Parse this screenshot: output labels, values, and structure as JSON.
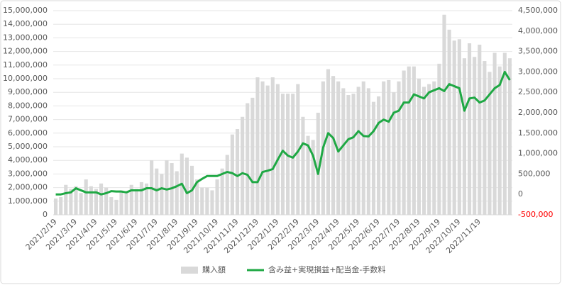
{
  "chart_data": {
    "type": "bar_line",
    "categories": [
      "2021/2/19",
      null,
      null,
      null,
      "2021/3/19",
      null,
      null,
      null,
      "2021/4/19",
      null,
      null,
      null,
      "2021/5/19",
      null,
      null,
      null,
      "2021/6/19",
      null,
      null,
      null,
      "2021/7/19",
      null,
      null,
      null,
      "2021/8/19",
      null,
      null,
      null,
      "2021/9/19",
      null,
      null,
      null,
      "2021/10/19",
      null,
      null,
      null,
      "2021/11/19",
      null,
      null,
      null,
      "2021/12/19",
      null,
      null,
      null,
      "2022/1/19",
      null,
      null,
      null,
      "2022/2/19",
      null,
      null,
      null,
      "2022/3/19",
      null,
      null,
      null,
      "2022/4/19",
      null,
      null,
      null,
      "2022/5/19",
      null,
      null,
      null,
      "2022/6/19",
      null,
      null,
      null,
      "2022/7/19",
      null,
      null,
      null,
      "2022/8/19",
      null,
      null,
      null,
      "2022/9/19",
      null,
      null,
      null,
      "2022/10/19",
      null,
      null,
      null,
      "2022/11/19",
      null,
      null,
      null,
      null,
      null,
      null
    ],
    "series": [
      {
        "name": "購入額",
        "color": "#d9d9d9",
        "type": "bar",
        "values": [
          1200000,
          1300000,
          2200000,
          1900000,
          2100000,
          1600000,
          2600000,
          2100000,
          1900000,
          2300000,
          2000000,
          1300000,
          1100000,
          1800000,
          1700000,
          2200000,
          1900000,
          2400000,
          2300000,
          4000000,
          3400000,
          3000000,
          4000000,
          3800000,
          3200000,
          4500000,
          4200000,
          3600000,
          2600000,
          2000000,
          2000000,
          1800000,
          2600000,
          3400000,
          4400000,
          5900000,
          6300000,
          7200000,
          8200000,
          8600000,
          10100000,
          9800000,
          9500000,
          10100000,
          9600000,
          8900000,
          8900000,
          8900000,
          9600000,
          7200000,
          5800000,
          5500000,
          7500000,
          9800000,
          10700000,
          10200000,
          9800000,
          9300000,
          8800000,
          8900000,
          9400000,
          9800000,
          9300000,
          8300000,
          8700000,
          9800000,
          9900000,
          9000000,
          9800000,
          10600000,
          10900000,
          10900000,
          10000000,
          9400000,
          9600000,
          9800000,
          11100000,
          14700000,
          13600000,
          12800000,
          12900000,
          11500000,
          12600000,
          11600000,
          12500000,
          11300000,
          10500000,
          11900000,
          10900000,
          11900000,
          11500000
        ]
      },
      {
        "name": "含み益+実現損益+配当金-手数料",
        "color": "#1fa844",
        "type": "line",
        "axis": "y2",
        "values": [
          0,
          0,
          30000,
          50000,
          150000,
          100000,
          50000,
          50000,
          50000,
          0,
          30000,
          80000,
          70000,
          70000,
          50000,
          100000,
          100000,
          100000,
          150000,
          150000,
          100000,
          150000,
          120000,
          150000,
          200000,
          260000,
          30000,
          100000,
          300000,
          380000,
          450000,
          450000,
          450000,
          500000,
          550000,
          520000,
          450000,
          520000,
          480000,
          300000,
          300000,
          550000,
          580000,
          620000,
          850000,
          1070000,
          950000,
          900000,
          1050000,
          1250000,
          1200000,
          950000,
          500000,
          1150000,
          1500000,
          1380000,
          1050000,
          1200000,
          1350000,
          1400000,
          1550000,
          1430000,
          1420000,
          1550000,
          1750000,
          1830000,
          1780000,
          2000000,
          2050000,
          2250000,
          2250000,
          2450000,
          2400000,
          2350000,
          2500000,
          2550000,
          2600000,
          2530000,
          2700000,
          2650000,
          2600000,
          2050000,
          2350000,
          2370000,
          2250000,
          2300000,
          2450000,
          2600000,
          2680000,
          3000000,
          2800000
        ]
      }
    ],
    "ylim": [
      0,
      15000000
    ],
    "yticks": [
      0,
      {
        "value": 1000000,
        "label": "1,000,000"
      },
      {
        "value": 2000000,
        "label": "2,000,000"
      },
      {
        "value": 3000000,
        "label": "3,000,000"
      },
      {
        "value": 4000000,
        "label": "4,000,000"
      },
      {
        "value": 5000000,
        "label": "5,000,000"
      },
      {
        "value": 6000000,
        "label": "6,000,000"
      },
      {
        "value": 7000000,
        "label": "7,000,000"
      },
      {
        "value": 8000000,
        "label": "8,000,000"
      },
      {
        "value": 9000000,
        "label": "9,000,000"
      },
      {
        "value": 10000000,
        "label": "10,000,000"
      },
      {
        "value": 11000000,
        "label": "11,000,000"
      },
      {
        "value": 12000000,
        "label": "12,000,000"
      },
      {
        "value": 13000000,
        "label": "13,000,000"
      },
      {
        "value": 14000000,
        "label": "14,000,000"
      },
      {
        "value": 15000000,
        "label": "15,000,000"
      }
    ],
    "y2lim": [
      -500000,
      4500000
    ],
    "y2ticks": [
      {
        "value": -500000,
        "label": "-500,000"
      },
      0,
      {
        "value": 500000,
        "label": "500,000"
      },
      {
        "value": 1000000,
        "label": "1,000,000"
      },
      {
        "value": 1500000,
        "label": "1,500,000"
      },
      {
        "value": 2000000,
        "label": "2,000,000"
      },
      {
        "value": 2500000,
        "label": "2,500,000"
      },
      {
        "value": 3000000,
        "label": "3,000,000"
      },
      {
        "value": 3500000,
        "label": "3,500,000"
      },
      {
        "value": 4000000,
        "label": "4,000,000"
      },
      {
        "value": 4500000,
        "label": "4,500,000"
      }
    ],
    "y2_negative_label_color": "#ff0000",
    "legend": "bottom"
  }
}
